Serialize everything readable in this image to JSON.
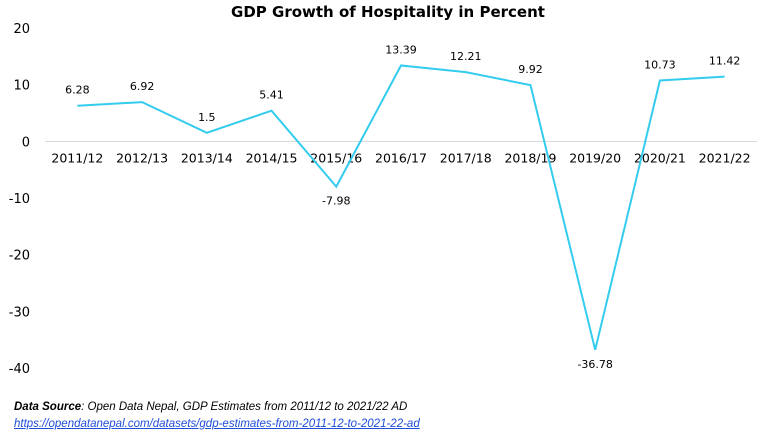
{
  "chart_data": {
    "type": "line",
    "title": "GDP Growth of Hospitality in Percent",
    "categories": [
      "2011/12",
      "2012/13",
      "2013/14",
      "2014/15",
      "2015/16",
      "2016/17",
      "2017/18",
      "2018/19",
      "2019/20",
      "2020/21",
      "2021/22"
    ],
    "series": [
      {
        "values": [
          6.28,
          6.92,
          1.5,
          5.41,
          -7.98,
          13.39,
          12.21,
          9.92,
          -36.78,
          10.73,
          11.42
        ]
      }
    ],
    "data_labels": [
      "6.28",
      "6.92",
      "1.5",
      "5.41",
      "-7.98",
      "13.39",
      "12.21",
      "9.92",
      "-36.78",
      "10.73",
      "11.42"
    ],
    "ylim": [
      -40,
      20
    ],
    "yticks": [
      20,
      10,
      0,
      -10,
      -20,
      -30,
      -40
    ],
    "ytick_labels": [
      "20",
      "10",
      "0",
      "-10",
      "-20",
      "-30",
      "-40"
    ],
    "grid": false,
    "line_color": "#33ccee"
  },
  "source": {
    "label": "Data Source",
    "text": ": Open Data Nepal,  GDP Estimates from 2011/12 to 2021/22 AD",
    "link": "https://opendatanepal.com/datasets/gdp-estimates-from-2011-12-to-2021-22-ad"
  }
}
